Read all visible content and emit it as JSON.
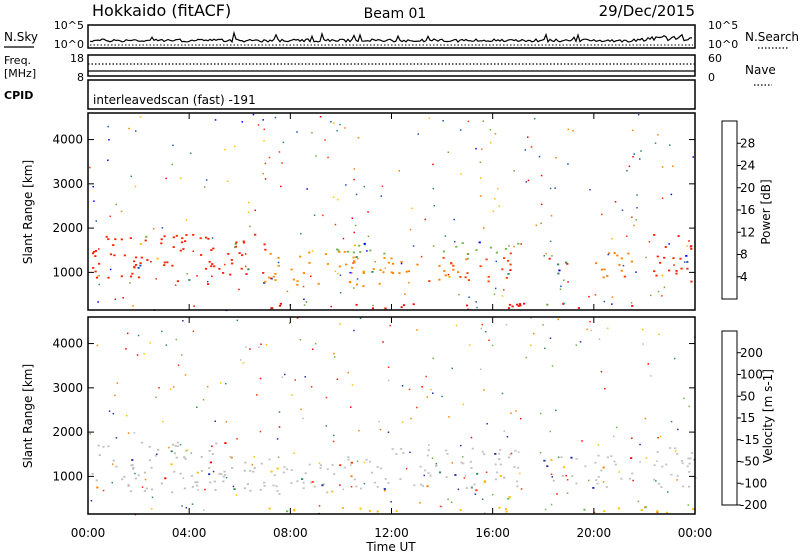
{
  "header": {
    "title_left": "Hokkaido (fitACF)",
    "title_center": "Beam 01",
    "title_right": "29/Dec/2015"
  },
  "nsky_panel": {
    "left_label": "N.Sky",
    "right_label": "N.Search",
    "left_ticks": [
      "10^5",
      "10^0"
    ],
    "right_ticks": [
      "10^5",
      "10^0"
    ]
  },
  "freq_panel": {
    "left_label_1": "Freq.",
    "left_label_2": "[MHz]",
    "right_label": "Nave",
    "left_ticks": [
      "18",
      "8"
    ],
    "right_ticks": [
      "60",
      "0"
    ]
  },
  "cpid_panel": {
    "left_label": "CPID",
    "text": "interleavedscan (fast) -191"
  },
  "chart_data": [
    {
      "type": "heatmap",
      "name": "power",
      "ylabel": "Slant Range [km]",
      "yticks": [
        "4000",
        "3000",
        "2000",
        "1000"
      ],
      "xticks": [
        "00:00",
        "04:00",
        "08:00",
        "12:00",
        "16:00",
        "20:00",
        "00:00"
      ],
      "colorbar_label": "Power [dB]",
      "colorbar_ticks": [
        "28",
        "24",
        "20",
        "16",
        "12",
        "8",
        "4"
      ],
      "colors": [
        "#ff0000",
        "#ff3300",
        "#ff7f00",
        "#ffc000",
        "#76a838",
        "#2e8b57",
        "#1f4fbf",
        "#0000ff"
      ],
      "x_unit": "hours UT",
      "y_unit": "km",
      "regions": [
        {
          "x": [
            0.1,
            7.0
          ],
          "y": [
            750,
            1900
          ],
          "color": "#ff2000"
        },
        {
          "x": [
            6.9,
            12.0
          ],
          "y": [
            700,
            1500
          ],
          "color": "#ff8c00"
        },
        {
          "x": [
            9.5,
            12.0
          ],
          "y": [
            1300,
            1700
          ],
          "color": "#6db84a"
        },
        {
          "x": [
            12.0,
            14.5
          ],
          "y": [
            800,
            1350
          ],
          "color": "#ff7f00"
        },
        {
          "x": [
            14.0,
            17.0
          ],
          "y": [
            800,
            1450
          ],
          "color": "#ff4000"
        },
        {
          "x": [
            14.0,
            17.0
          ],
          "y": [
            1400,
            1700
          ],
          "color": "#6db84a"
        },
        {
          "x": [
            18.2,
            19.2
          ],
          "y": [
            850,
            1350
          ],
          "color": "#ff2000"
        },
        {
          "x": [
            19.5,
            21.5
          ],
          "y": [
            850,
            1500
          ],
          "color": "#ff7f00"
        },
        {
          "x": [
            22.3,
            24.0
          ],
          "y": [
            800,
            1900
          ],
          "color": "#ff2000"
        },
        {
          "x": [
            7.0,
            24.0
          ],
          "y": [
            200,
            320
          ],
          "color": "#ee1111"
        }
      ]
    },
    {
      "type": "heatmap",
      "name": "velocity",
      "ylabel": "Slant Range [km]",
      "yticks": [
        "4000",
        "3000",
        "2000",
        "1000"
      ],
      "xticks": [
        "00:00",
        "04:00",
        "08:00",
        "12:00",
        "16:00",
        "20:00",
        "00:00"
      ],
      "xlabel": "Time UT",
      "colorbar_label": "Velocity [m s-1]",
      "colorbar_ticks": [
        "200",
        "100",
        "50",
        "15",
        "-15",
        "-50",
        "-100",
        "-200"
      ],
      "colors": [
        "#1f2fa0",
        "#2e8b57",
        "#6db84a",
        "#b8b8b8",
        "#ffc000",
        "#ff8000",
        "#ff3000",
        "#ff0000"
      ],
      "x_unit": "hours UT",
      "y_unit": "km",
      "regions": [
        {
          "x": [
            0.1,
            7.0
          ],
          "y": [
            650,
            1800
          ],
          "color": "#c0c0c0"
        },
        {
          "x": [
            7.0,
            12.0
          ],
          "y": [
            600,
            1500
          ],
          "color": "#c4c4c4"
        },
        {
          "x": [
            12.0,
            17.0
          ],
          "y": [
            750,
            1650
          ],
          "color": "#c4c4c4"
        },
        {
          "x": [
            18.0,
            21.5
          ],
          "y": [
            750,
            1500
          ],
          "color": "#c4c4c4"
        },
        {
          "x": [
            22.3,
            24.0
          ],
          "y": [
            700,
            1900
          ],
          "color": "#c4c4c4"
        },
        {
          "x": [
            14.5,
            16.0
          ],
          "y": [
            700,
            900
          ],
          "color": "#ffb000"
        },
        {
          "x": [
            16.5,
            17.5
          ],
          "y": [
            500,
            700
          ],
          "color": "#55cc33"
        },
        {
          "x": [
            7.0,
            24.0
          ],
          "y": [
            200,
            320
          ],
          "color": "#ffc000"
        }
      ]
    }
  ]
}
